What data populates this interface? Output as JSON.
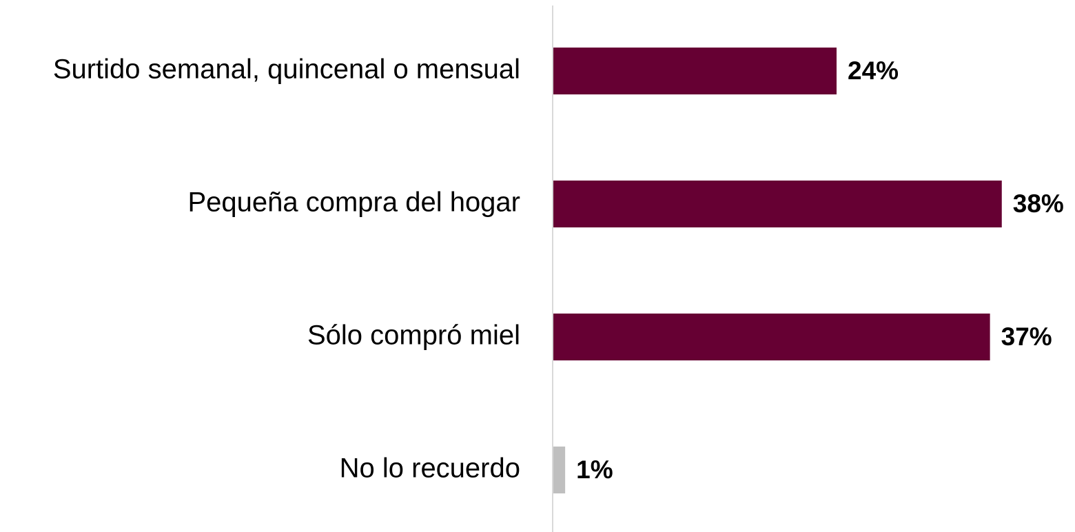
{
  "chart_data": {
    "type": "hbar",
    "categories": [
      "Surtido semanal, quincenal o mensual",
      "Pequeña compra del hogar",
      "Sólo compró miel",
      "No lo recuerdo"
    ],
    "values": [
      24,
      38,
      37,
      1
    ],
    "value_labels": [
      "24%",
      "38%",
      "37%",
      "1%"
    ],
    "colors": [
      "#660033",
      "#660033",
      "#660033",
      "#bfbfbf"
    ]
  }
}
